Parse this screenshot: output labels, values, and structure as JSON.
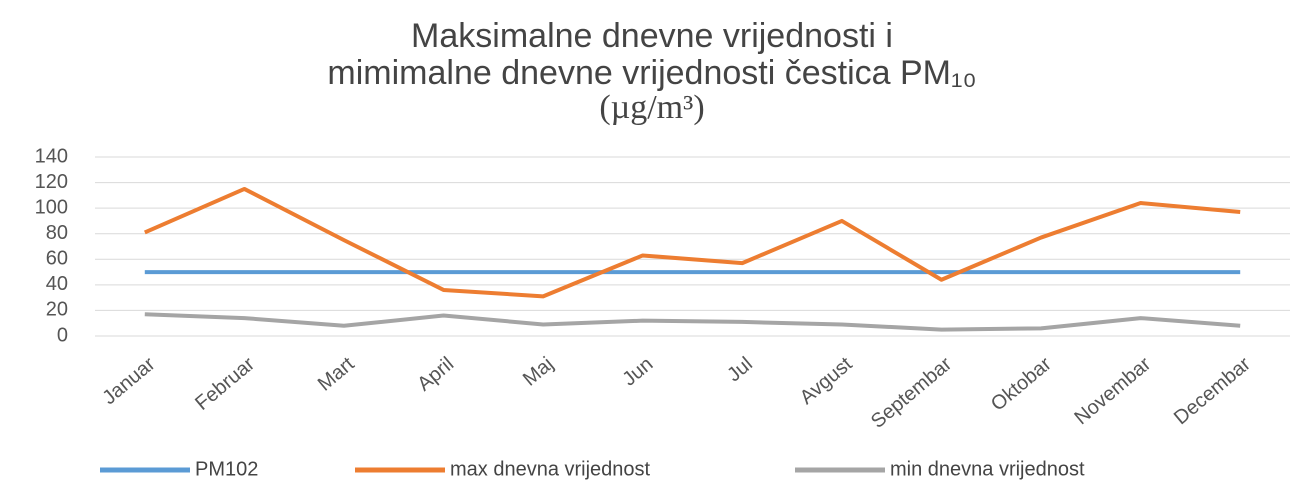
{
  "chart_data": {
    "type": "line",
    "title": [
      "Maksimalne dnevne vrijednosti i",
      "mimimalne dnevne vrijednosti čestica PM₁₀",
      "(µg/m³)"
    ],
    "categories": [
      "Januar",
      "Februar",
      "Mart",
      "April",
      "Maj",
      "Jun",
      "Jul",
      "Avgust",
      "Septembar",
      "Oktobar",
      "Novembar",
      "Decembar"
    ],
    "series": [
      {
        "name": "PM102",
        "color": "#5b9bd5",
        "values": [
          50,
          50,
          50,
          50,
          50,
          50,
          50,
          50,
          50,
          50,
          50,
          50
        ]
      },
      {
        "name": "max dnevna vrijednost",
        "color": "#ed7d31",
        "values": [
          81,
          115,
          75,
          36,
          31,
          63,
          57,
          90,
          44,
          77,
          104,
          97
        ]
      },
      {
        "name": "min dnevna vrijednost",
        "color": "#a5a5a5",
        "values": [
          17,
          14,
          8,
          16,
          9,
          12,
          11,
          9,
          5,
          6,
          14,
          8
        ]
      }
    ],
    "ylim": [
      0,
      140
    ],
    "yticks": [
      0,
      20,
      40,
      60,
      80,
      100,
      120,
      140
    ],
    "grid": true,
    "legend": "bottom"
  }
}
